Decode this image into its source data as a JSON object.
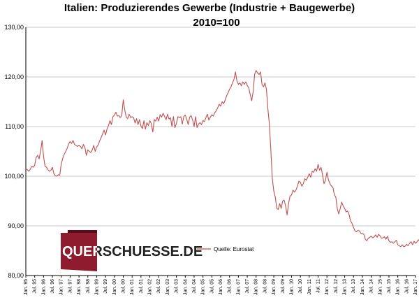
{
  "chart_data": {
    "type": "line",
    "title": "Italien: Produzierendes  Gewerbe (Industrie + Baugewerbe)",
    "subtitle": "2010=100",
    "xlabel": "",
    "ylabel": "",
    "ylim": [
      80,
      130
    ],
    "yticks": [
      "80,00",
      "90,00",
      "100,00",
      "110,00",
      "120,00",
      "130,00"
    ],
    "xticks": [
      "Jan. 95",
      "Jul. 95",
      "Jan. 96",
      "Jul. 96",
      "Jan. 97",
      "Jul. 97",
      "Jan. 98",
      "Jul. 98",
      "Jan. 99",
      "Jul. 99",
      "Jan. 00",
      "Jul. 00",
      "Jan. 01",
      "Jul. 01",
      "Jan. 02",
      "Jul. 02",
      "Jan. 03",
      "Jul. 03",
      "Jan. 04",
      "Jul. 04",
      "Jan. 05",
      "Jul. 05",
      "Jan. 06",
      "Jul. 06",
      "Jan. 07",
      "Jul. 07",
      "Jan. 08",
      "Jul. 08",
      "Jan. 09",
      "Jul. 09",
      "Jan. 10",
      "Jul. 10",
      "Jan. 11",
      "Jul. 11",
      "Jan. 12",
      "Jul. 12",
      "Jan. 13",
      "Jul. 13",
      "Jan. 14",
      "Jul. 14",
      "Jan. 15",
      "Jul. 15",
      "Jan. 16",
      "Jul. 16",
      "Jan. 17"
    ],
    "grid": "horizontal",
    "legend_position": "bottom-right",
    "series": [
      {
        "name": "Quelle: Eurostat",
        "color": "#c0504d",
        "x_start": "1995-01",
        "frequency": "monthly",
        "values": [
          101.5,
          101.3,
          101.0,
          101.4,
          102.0,
          101.8,
          102.2,
          103.8,
          104.2,
          103.5,
          105.0,
          107.2,
          104.0,
          102.0,
          101.8,
          101.3,
          101.0,
          101.2,
          101.8,
          100.5,
          100.1,
          100.0,
          100.3,
          100.2,
          102.5,
          103.6,
          104.4,
          105.0,
          105.6,
          106.5,
          107.0,
          106.6,
          107.2,
          106.4,
          106.2,
          106.0,
          106.2,
          106.0,
          105.5,
          106.4,
          105.8,
          104.2,
          105.3,
          105.0,
          104.8,
          105.3,
          106.2,
          105.0,
          105.9,
          106.3,
          107.1,
          107.8,
          108.5,
          109.3,
          108.3,
          109.5,
          110.2,
          111.2,
          110.4,
          112.0,
          112.3,
          112.9,
          112.1,
          112.2,
          111.8,
          112.3,
          115.4,
          113.4,
          111.9,
          111.6,
          112.5,
          111.8,
          112.0,
          111.8,
          110.7,
          111.6,
          110.4,
          111.4,
          110.1,
          109.6,
          111.2,
          109.5,
          110.8,
          110.2,
          111.2,
          110.6,
          108.9,
          111.4,
          111.1,
          111.9,
          111.1,
          112.4,
          111.9,
          112.7,
          112.0,
          111.4,
          112.5,
          111.5,
          111.8,
          110.0,
          112.0,
          109.8,
          110.6,
          112.0,
          111.8,
          112.0,
          110.5,
          112.0,
          112.3,
          111.5,
          110.4,
          111.9,
          112.2,
          111.3,
          110.0,
          112.0,
          109.8,
          110.5,
          110.8,
          110.4,
          111.2,
          111.0,
          111.8,
          112.5,
          111.3,
          111.9,
          112.4,
          112.1,
          112.8,
          113.2,
          113.8,
          114.5,
          114.1,
          115.0,
          114.6,
          115.3,
          116.2,
          116.8,
          117.5,
          118.0,
          118.8,
          119.5,
          121.0,
          119.2,
          118.5,
          118.8,
          118.2,
          119.0,
          118.5,
          119.0,
          118.3,
          117.8,
          116.5,
          115.2,
          117.0,
          120.5,
          121.3,
          120.8,
          120.5,
          121.0,
          118.5,
          118.0,
          118.8,
          117.5,
          113.5,
          110.5,
          105.2,
          99.5,
          97.0,
          95.8,
          93.5,
          93.3,
          94.5,
          93.5,
          95.0,
          95.2,
          94.0,
          92.2,
          94.5,
          96.0,
          96.2,
          97.2,
          96.8,
          97.2,
          98.0,
          99.0,
          98.8,
          98.0,
          98.5,
          99.5,
          99.2,
          99.8,
          100.5,
          99.8,
          101.0,
          100.8,
          101.5,
          101.0,
          102.4,
          101.2,
          101.8,
          100.3,
          98.5,
          99.2,
          100.8,
          99.3,
          98.5,
          98.0,
          97.8,
          96.3,
          95.8,
          93.5,
          92.4,
          93.5,
          94.8,
          94.0,
          93.5,
          92.8,
          93.0,
          92.3,
          91.0,
          90.5,
          89.7,
          89.0,
          88.8,
          89.1,
          89.0,
          88.5,
          88.5,
          88.3,
          87.3,
          87.0,
          87.5,
          87.7,
          87.9,
          87.6,
          87.8,
          88.2,
          87.7,
          88.3,
          88.0,
          87.5,
          87.6,
          87.8,
          87.3,
          87.9,
          87.0,
          86.7,
          86.8,
          86.5,
          86.8,
          87.1,
          86.2,
          86.0,
          85.8,
          86.2,
          85.8,
          85.9,
          86.3,
          86.0,
          86.5,
          86.8,
          86.2,
          86.9,
          86.5,
          86.8,
          87.2,
          86.9,
          87.4,
          87.8,
          87.1,
          87.6,
          87.7,
          87.8,
          87.3,
          87.7,
          88.0,
          87.6,
          88.0,
          87.8,
          87.2,
          87.9,
          88.3,
          87.5,
          87.3,
          87.5,
          89.2,
          88.0,
          87.8
        ]
      }
    ]
  },
  "watermark": "QUERSCHUESSE.DE"
}
